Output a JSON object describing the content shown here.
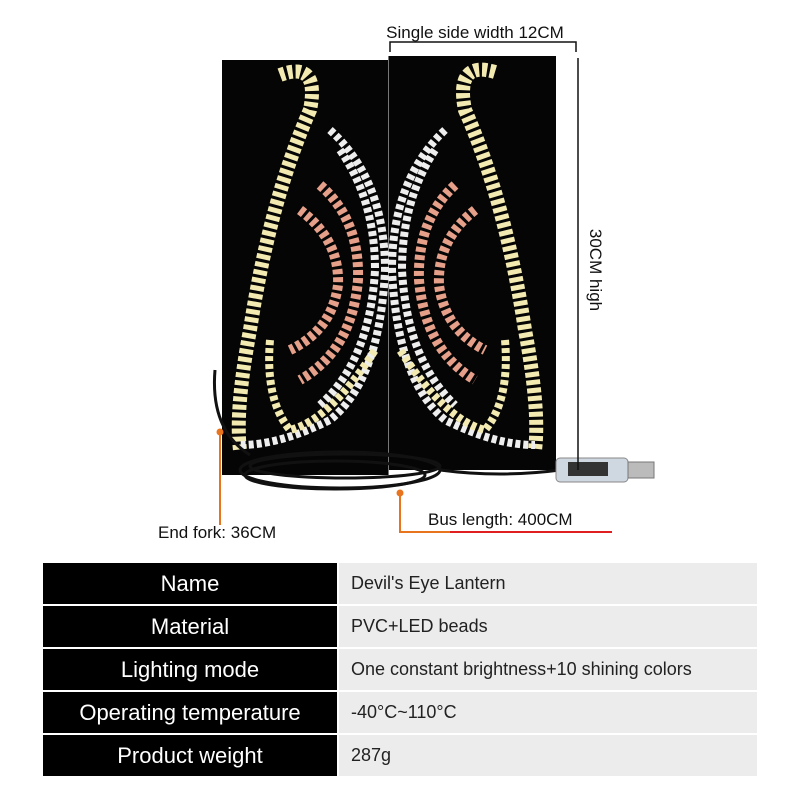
{
  "annotations": {
    "width": "Single side width 12CM",
    "height": "30CM high",
    "end_fork": "End fork: 36CM",
    "bus_length": "Bus length: 400CM"
  },
  "table": {
    "rows": [
      [
        "Name",
        "Devil's Eye Lantern"
      ],
      [
        "Material",
        "PVC+LED beads"
      ],
      [
        "Lighting mode",
        "One constant brightness+10 shining colors"
      ],
      [
        "Operating temperature",
        "-40°C~110°C"
      ],
      [
        "Product weight",
        "287g"
      ]
    ]
  }
}
